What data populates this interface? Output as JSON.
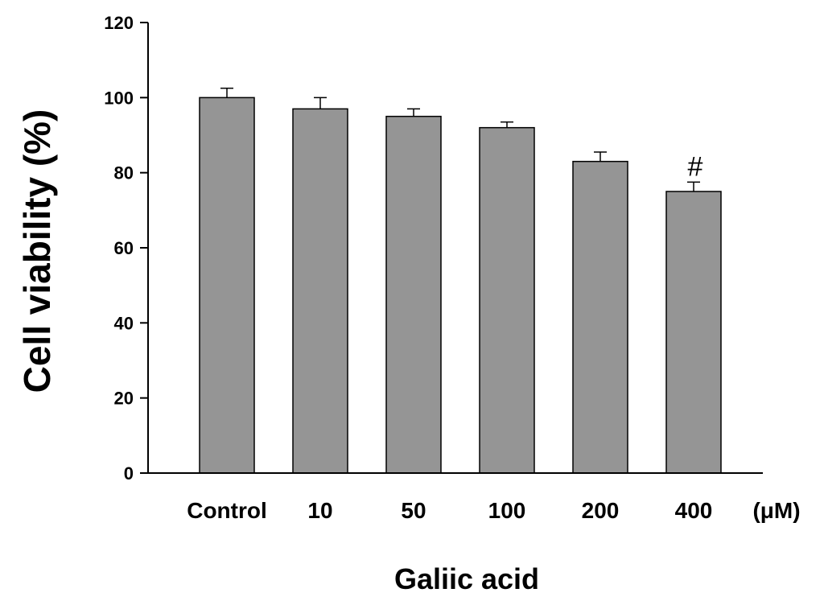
{
  "chart_data": {
    "type": "bar",
    "categories": [
      "Control",
      "10",
      "50",
      "100",
      "200",
      "400"
    ],
    "values": [
      100,
      97,
      95,
      92,
      83,
      75
    ],
    "errors": [
      2.5,
      3,
      2,
      1.5,
      2.5,
      2.5
    ],
    "annotations": [
      {
        "category": "400",
        "text": "#"
      }
    ],
    "xlabel": "Galiic acid",
    "x_unit": "(μM)",
    "ylabel": "Cell viability (%)",
    "ylim": [
      0,
      120
    ],
    "yticks": [
      0,
      20,
      40,
      60,
      80,
      100,
      120
    ],
    "bar_color": "#959595",
    "grid": false
  }
}
